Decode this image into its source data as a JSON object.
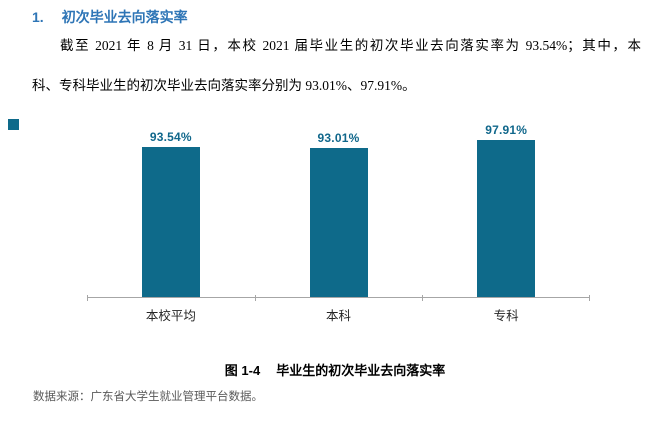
{
  "heading": {
    "number": "1.",
    "title": "初次毕业去向落实率",
    "color": "#2E75B6"
  },
  "paragraph": {
    "line1": "截至 2021 年 8 月 31 日，本校 2021 届毕业生的初次毕业去向落实率为 93.54%；其中，本",
    "line2": "科、专科毕业生的初次毕业去向落实率分别为 93.01%、97.91%。"
  },
  "chart_data": {
    "type": "bar",
    "categories": [
      "本校平均",
      "本科",
      "专科"
    ],
    "values": [
      93.54,
      93.01,
      97.91
    ],
    "value_labels": [
      "93.54%",
      "93.01%",
      "97.91%"
    ],
    "title": "图 1-4 毕业生的初次毕业去向落实率",
    "xlabel": "",
    "ylabel": "",
    "ylim": [
      0,
      100
    ],
    "grid": false,
    "legend": false,
    "bar_color": "#0E6A8A",
    "value_label_color": "#10678B",
    "axis_color": "#A6A6A6"
  },
  "caption": {
    "figure_label": "图 1-4",
    "text": "毕业生的初次毕业去向落实率"
  },
  "source": {
    "text": "数据来源：广东省大学生就业管理平台数据。"
  }
}
